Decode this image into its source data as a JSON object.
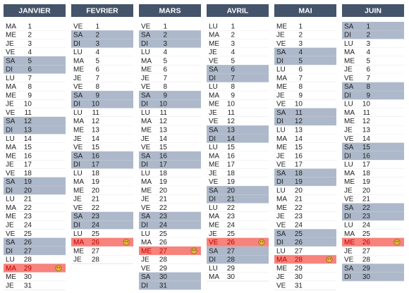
{
  "months": [
    {
      "name": "JANVIER",
      "days": [
        [
          "MA",
          1
        ],
        [
          "ME",
          2
        ],
        [
          "JE",
          3
        ],
        [
          "VE",
          4
        ],
        [
          "SA",
          5,
          "w"
        ],
        [
          "DI",
          6,
          "w"
        ],
        [
          "LU",
          7
        ],
        [
          "MA",
          8
        ],
        [
          "ME",
          9
        ],
        [
          "JE",
          10
        ],
        [
          "VE",
          11
        ],
        [
          "SA",
          12,
          "w"
        ],
        [
          "DI",
          13,
          "w"
        ],
        [
          "LU",
          14
        ],
        [
          "MA",
          15
        ],
        [
          "ME",
          16
        ],
        [
          "JE",
          17
        ],
        [
          "VE",
          18
        ],
        [
          "SA",
          19,
          "w"
        ],
        [
          "DI",
          20,
          "w"
        ],
        [
          "LU",
          21
        ],
        [
          "MA",
          22
        ],
        [
          "ME",
          23
        ],
        [
          "JE",
          24
        ],
        [
          "VE",
          25
        ],
        [
          "SA",
          26,
          "w"
        ],
        [
          "DI",
          27,
          "w"
        ],
        [
          "LU",
          28
        ],
        [
          "MA",
          29,
          "e"
        ],
        [
          "ME",
          30
        ],
        [
          "JE",
          31
        ]
      ]
    },
    {
      "name": "FEVRIER",
      "days": [
        [
          "VE",
          1
        ],
        [
          "SA",
          2,
          "w"
        ],
        [
          "DI",
          3,
          "w"
        ],
        [
          "LU",
          4
        ],
        [
          "MA",
          5
        ],
        [
          "ME",
          6
        ],
        [
          "JE",
          7
        ],
        [
          "VE",
          8
        ],
        [
          "SA",
          9,
          "w"
        ],
        [
          "DI",
          10,
          "w"
        ],
        [
          "LU",
          11
        ],
        [
          "MA",
          12
        ],
        [
          "ME",
          13
        ],
        [
          "JE",
          14
        ],
        [
          "VE",
          15
        ],
        [
          "SA",
          16,
          "w"
        ],
        [
          "DI",
          17,
          "w"
        ],
        [
          "LU",
          18
        ],
        [
          "MA",
          19
        ],
        [
          "ME",
          20
        ],
        [
          "JE",
          21
        ],
        [
          "VE",
          22
        ],
        [
          "SA",
          23,
          "w"
        ],
        [
          "DI",
          24,
          "w"
        ],
        [
          "LU",
          25
        ],
        [
          "MA",
          26,
          "e"
        ],
        [
          "ME",
          27
        ],
        [
          "JE",
          28
        ]
      ]
    },
    {
      "name": "MARS",
      "days": [
        [
          "VE",
          1
        ],
        [
          "SA",
          2,
          "w"
        ],
        [
          "DI",
          3,
          "w"
        ],
        [
          "LU",
          4
        ],
        [
          "MA",
          5
        ],
        [
          "ME",
          6
        ],
        [
          "JE",
          7
        ],
        [
          "VE",
          8
        ],
        [
          "SA",
          9,
          "w"
        ],
        [
          "DI",
          10,
          "w"
        ],
        [
          "LU",
          11
        ],
        [
          "MA",
          12
        ],
        [
          "ME",
          13
        ],
        [
          "JE",
          14
        ],
        [
          "VE",
          15
        ],
        [
          "SA",
          16,
          "w"
        ],
        [
          "DI",
          17,
          "w"
        ],
        [
          "LU",
          18
        ],
        [
          "MA",
          19
        ],
        [
          "ME",
          20
        ],
        [
          "JE",
          21
        ],
        [
          "VE",
          22
        ],
        [
          "SA",
          23,
          "w"
        ],
        [
          "DI",
          24,
          "w"
        ],
        [
          "LU",
          25
        ],
        [
          "MA",
          26
        ],
        [
          "ME",
          27,
          "e"
        ],
        [
          "JE",
          28
        ],
        [
          "VE",
          29
        ],
        [
          "SA",
          30,
          "w"
        ],
        [
          "DI",
          31,
          "w"
        ]
      ]
    },
    {
      "name": "AVRIL",
      "days": [
        [
          "LU",
          1
        ],
        [
          "MA",
          2
        ],
        [
          "ME",
          3
        ],
        [
          "JE",
          4
        ],
        [
          "VE",
          5
        ],
        [
          "SA",
          6,
          "w"
        ],
        [
          "DI",
          7,
          "w"
        ],
        [
          "LU",
          8
        ],
        [
          "MA",
          9
        ],
        [
          "ME",
          10
        ],
        [
          "JE",
          11
        ],
        [
          "VE",
          12
        ],
        [
          "SA",
          13,
          "w"
        ],
        [
          "DI",
          14,
          "w"
        ],
        [
          "LU",
          15
        ],
        [
          "MA",
          16
        ],
        [
          "ME",
          17
        ],
        [
          "JE",
          18
        ],
        [
          "VE",
          19
        ],
        [
          "SA",
          20,
          "w"
        ],
        [
          "DI",
          21,
          "w"
        ],
        [
          "LU",
          22
        ],
        [
          "MA",
          23
        ],
        [
          "ME",
          24
        ],
        [
          "JE",
          25
        ],
        [
          "VE",
          26,
          "e"
        ],
        [
          "SA",
          27,
          "w"
        ],
        [
          "DI",
          28,
          "w"
        ],
        [
          "LU",
          29
        ],
        [
          "MA",
          30
        ]
      ]
    },
    {
      "name": "MAI",
      "days": [
        [
          "ME",
          1
        ],
        [
          "JE",
          2
        ],
        [
          "VE",
          3
        ],
        [
          "SA",
          4,
          "w"
        ],
        [
          "DI",
          5,
          "w"
        ],
        [
          "LU",
          6
        ],
        [
          "MA",
          7
        ],
        [
          "ME",
          8
        ],
        [
          "JE",
          9
        ],
        [
          "VE",
          10
        ],
        [
          "SA",
          11,
          "w"
        ],
        [
          "DI",
          12,
          "w"
        ],
        [
          "LU",
          13
        ],
        [
          "MA",
          14
        ],
        [
          "ME",
          15
        ],
        [
          "JE",
          16
        ],
        [
          "VE",
          17
        ],
        [
          "SA",
          18,
          "w"
        ],
        [
          "DI",
          19,
          "w"
        ],
        [
          "LU",
          20
        ],
        [
          "MA",
          21
        ],
        [
          "ME",
          22
        ],
        [
          "JE",
          23
        ],
        [
          "VE",
          24
        ],
        [
          "SA",
          25,
          "w"
        ],
        [
          "DI",
          26,
          "w"
        ],
        [
          "LU",
          27
        ],
        [
          "MA",
          28,
          "e"
        ],
        [
          "ME",
          29
        ],
        [
          "JE",
          30
        ],
        [
          "VE",
          31
        ]
      ]
    },
    {
      "name": "JUIN",
      "days": [
        [
          "SA",
          1,
          "w"
        ],
        [
          "DI",
          2,
          "w"
        ],
        [
          "LU",
          3
        ],
        [
          "MA",
          4
        ],
        [
          "ME",
          5
        ],
        [
          "JE",
          6
        ],
        [
          "VE",
          7
        ],
        [
          "SA",
          8,
          "w"
        ],
        [
          "DI",
          9,
          "w"
        ],
        [
          "LU",
          10
        ],
        [
          "MA",
          11
        ],
        [
          "ME",
          12
        ],
        [
          "JE",
          13
        ],
        [
          "VE",
          14
        ],
        [
          "SA",
          15,
          "w"
        ],
        [
          "DI",
          16,
          "w"
        ],
        [
          "LU",
          17
        ],
        [
          "MA",
          18
        ],
        [
          "ME",
          19
        ],
        [
          "JE",
          20
        ],
        [
          "VE",
          21
        ],
        [
          "SA",
          22,
          "w"
        ],
        [
          "DI",
          23,
          "w"
        ],
        [
          "LU",
          24
        ],
        [
          "MA",
          25
        ],
        [
          "ME",
          26,
          "e"
        ],
        [
          "JE",
          27
        ],
        [
          "VE",
          28
        ],
        [
          "SA",
          29,
          "w"
        ],
        [
          "DI",
          30,
          "w"
        ]
      ]
    }
  ]
}
